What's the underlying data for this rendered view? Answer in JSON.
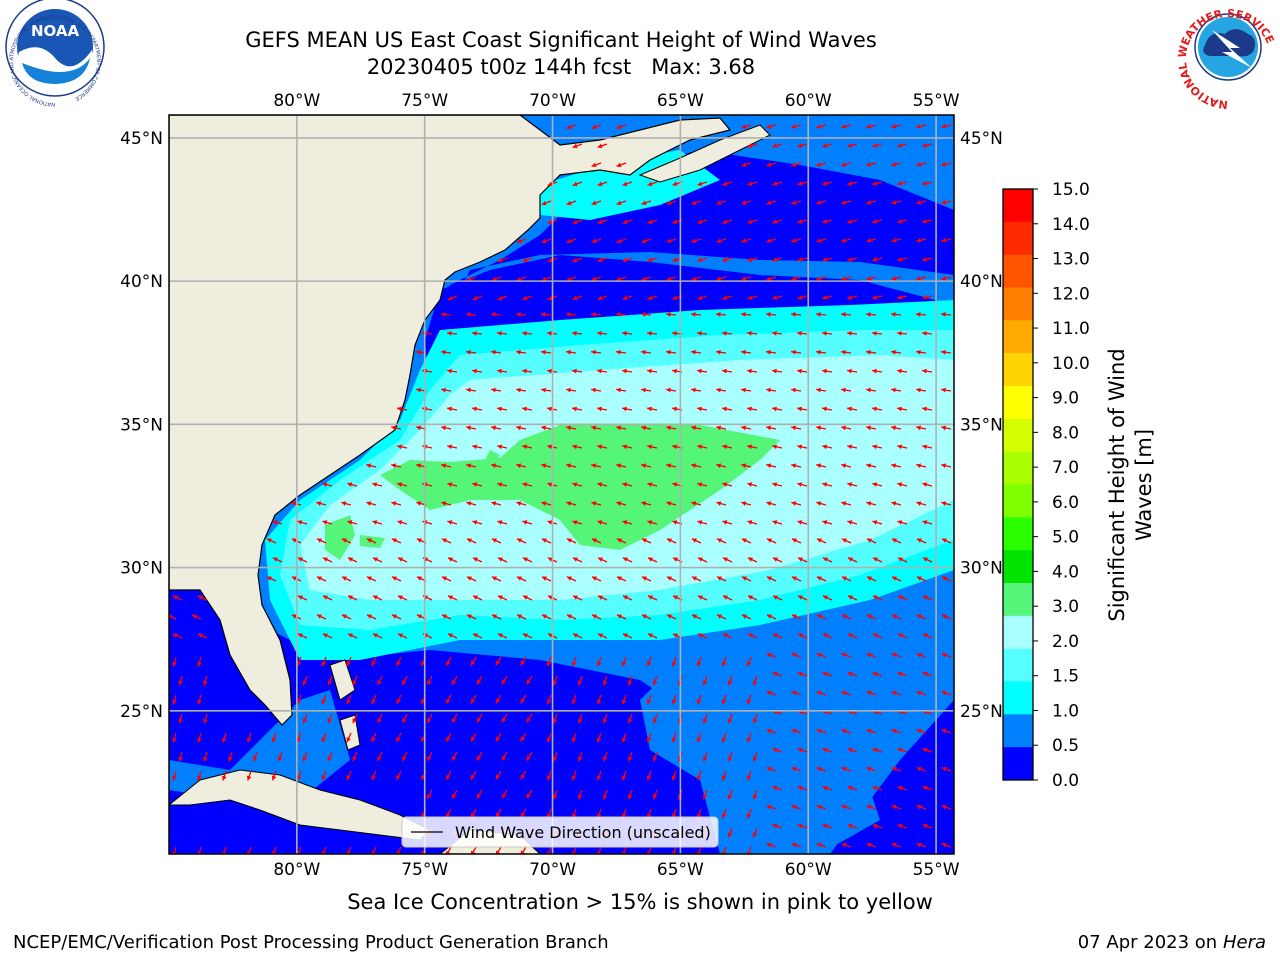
{
  "title": {
    "line1": "GEFS MEAN US East Coast Significant Height of Wind Waves",
    "line2": "20230405 t00z 144h fcst   Max: 3.68"
  },
  "logos": {
    "left": {
      "text": "NOAA",
      "ring_text": "NATIONAL OCEANIC AND ATMOSPHERIC ADMINISTRATION · U.S. DEPARTMENT OF COMMERCE"
    },
    "right": {
      "ring_text": "NATIONAL WEATHER SERVICE"
    }
  },
  "map": {
    "lon_ticks": [
      "80°W",
      "75°W",
      "70°W",
      "65°W",
      "60°W",
      "55°W"
    ],
    "lat_ticks": [
      "45°N",
      "40°N",
      "35°N",
      "30°N",
      "25°N"
    ],
    "lon_values": [
      -80,
      -75,
      -70,
      -65,
      -60,
      -55
    ],
    "lat_values": [
      45,
      40,
      35,
      30,
      25
    ],
    "extent": {
      "lon_min": -85,
      "lon_max": -54.3,
      "lat_min": 20,
      "lat_max": 45.8
    },
    "legend_text": "Wind Wave Direction (unscaled)",
    "colors": {
      "land": "#efedde",
      "grid": "#b0b0b0",
      "arrow": "#ff0000"
    }
  },
  "colorbar": {
    "label": "Significant Height of Wind Waves [m]",
    "label_line1": "Significant Height of Wind",
    "label_line2": "Waves [m]",
    "ticks": [
      "15.0",
      "14.0",
      "13.0",
      "12.0",
      "11.0",
      "10.0",
      "9.0",
      "8.0",
      "7.0",
      "6.0",
      "5.0",
      "4.0",
      "3.0",
      "2.0",
      "1.5",
      "1.0",
      "0.5",
      "0.0"
    ],
    "colors_top_to_bottom": [
      "#ff0000",
      "#ff2a00",
      "#ff5500",
      "#ff7f00",
      "#ffaa00",
      "#ffd400",
      "#ffff00",
      "#d4ff00",
      "#aaff00",
      "#7fff00",
      "#2aff00",
      "#00e400",
      "#55f57a",
      "#aaffff",
      "#55ffff",
      "#00ffff",
      "#0080ff",
      "#0000ff"
    ]
  },
  "sea_ice_note": "Sea Ice Concentration > 15% is shown in pink to yellow",
  "footer": {
    "left": "NCEP/EMC/Verification Post Processing Product Generation Branch",
    "right_date": "07 Apr 2023 on ",
    "right_machine": "Hera"
  }
}
